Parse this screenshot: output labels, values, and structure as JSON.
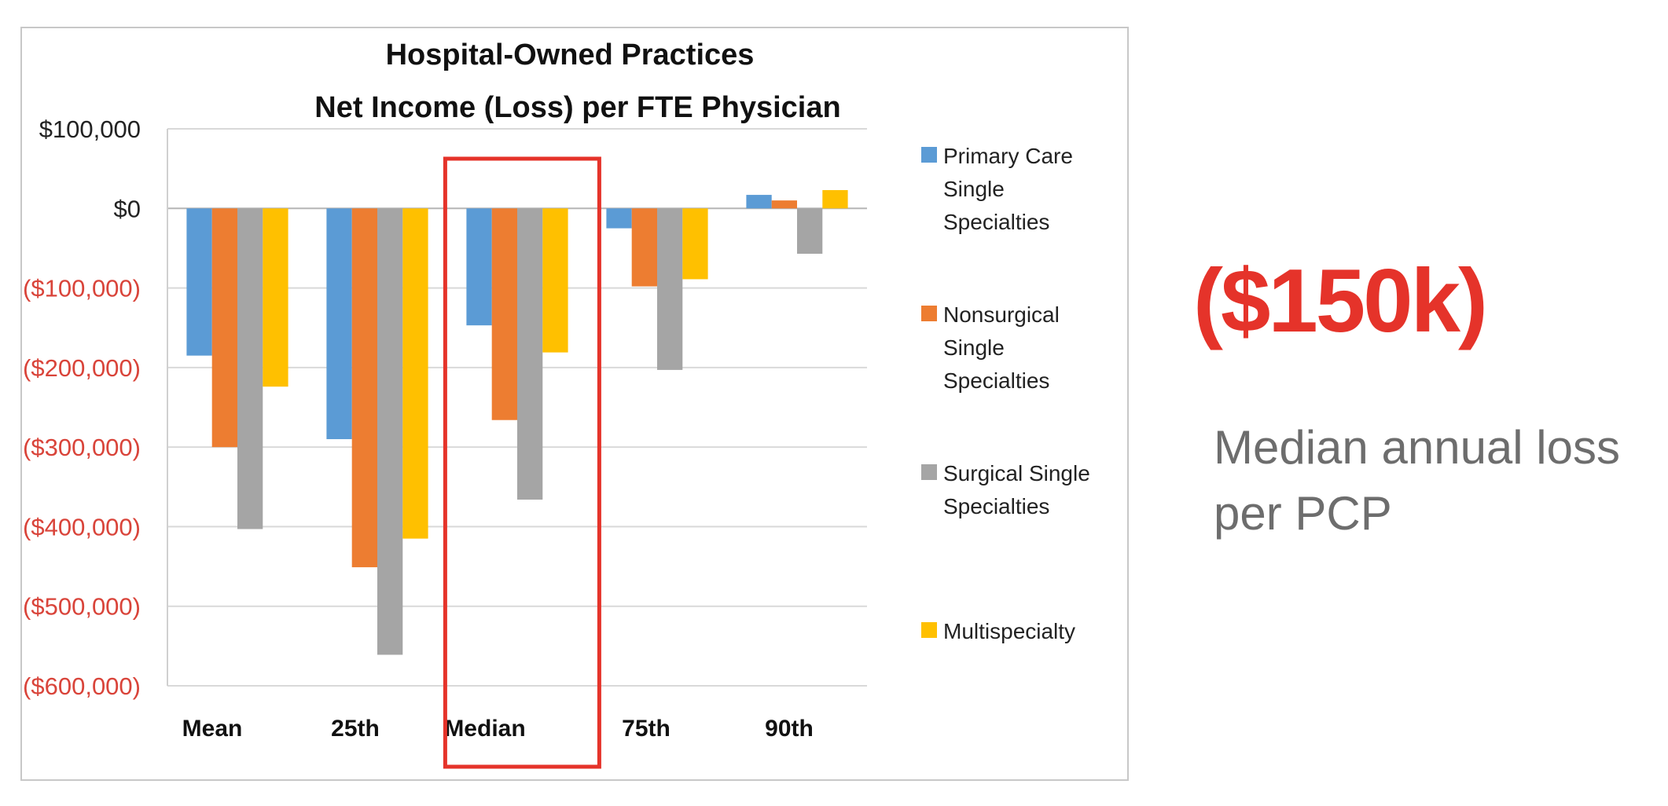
{
  "chart_data": {
    "type": "bar",
    "title": [
      "Hospital-Owned Practices",
      "Net Income (Loss) per FTE Physician"
    ],
    "categories": [
      "Mean",
      "25th",
      "Median",
      "75th",
      "90th"
    ],
    "series": [
      {
        "name": "Primary Care Single Specialties",
        "legend_lines": [
          "Primary Care",
          "Single",
          "Specialties"
        ],
        "color": "#5b9bd5",
        "values": [
          -185000,
          -290000,
          -147000,
          -25000,
          17000
        ]
      },
      {
        "name": "Nonsurgical Single Specialties",
        "legend_lines": [
          "Nonsurgical",
          "Single",
          "Specialties"
        ],
        "color": "#ed7d31",
        "values": [
          -300000,
          -451000,
          -266000,
          -98000,
          10000
        ]
      },
      {
        "name": "Surgical Single Specialties",
        "legend_lines": [
          "Surgical Single",
          "Specialties"
        ],
        "color": "#a5a5a5",
        "values": [
          -403000,
          -561000,
          -366000,
          -203000,
          -57000
        ]
      },
      {
        "name": "Multispecialty",
        "legend_lines": [
          "Multispecialty"
        ],
        "color": "#ffc000",
        "values": [
          -224000,
          -415000,
          -181000,
          -89000,
          23000
        ]
      }
    ],
    "ylim": [
      -600000,
      100000
    ],
    "yticks": [
      100000,
      0,
      -100000,
      -200000,
      -300000,
      -400000,
      -500000,
      -600000
    ],
    "ytick_labels": [
      "$100,000",
      "$0",
      "($100,000)",
      "($200,000)",
      "($300,000)",
      "($400,000)",
      "($500,000)",
      "($600,000)"
    ],
    "negative_label_color": "#d9443a",
    "grid": true,
    "legend_position": "right",
    "highlight": {
      "category": "Median",
      "color": "#e5332a"
    }
  },
  "callout": {
    "value": "($150k)",
    "caption": "Median annual loss per PCP",
    "color": "#e5332a"
  }
}
